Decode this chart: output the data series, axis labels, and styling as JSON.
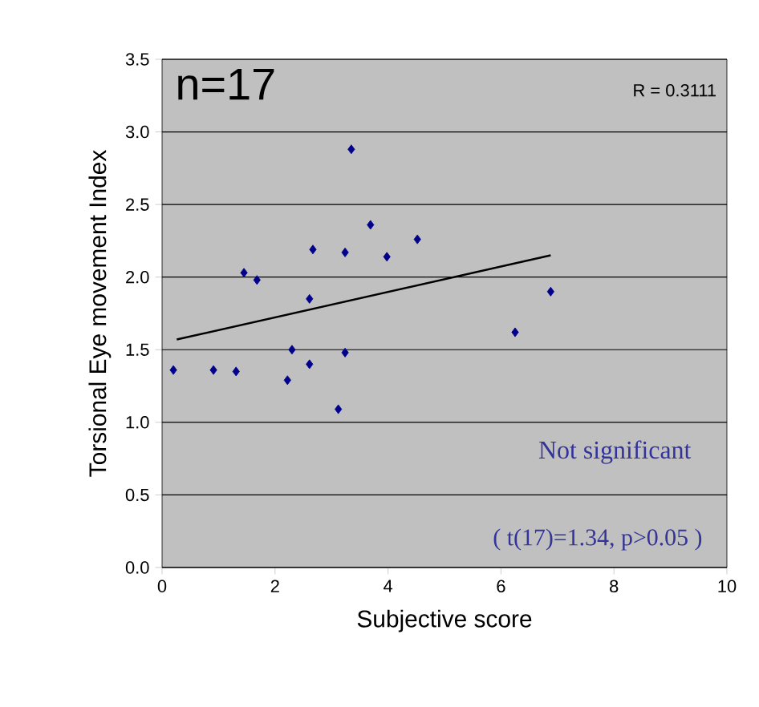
{
  "chart_data": {
    "type": "scatter",
    "xlabel": "Subjective score",
    "ylabel": "Torsional Eye movement Index",
    "xlim": [
      0,
      10
    ],
    "ylim": [
      0,
      3.5
    ],
    "xticks": [
      0,
      2,
      4,
      6,
      8,
      10
    ],
    "yticks": [
      {
        "value": 0,
        "label": "0.0"
      },
      0.5,
      {
        "value": 1,
        "label": "1.0"
      },
      1.5,
      {
        "value": 2,
        "label": "2.0"
      },
      2.5,
      {
        "value": 3,
        "label": "3.0"
      },
      3.5
    ],
    "grid": "y",
    "marker": "diamond",
    "series": [
      {
        "color": "#00008b",
        "x": [
          0.2,
          0.91,
          1.31,
          1.45,
          1.68,
          2.22,
          2.3,
          2.61,
          2.61,
          2.67,
          3.12,
          3.24,
          3.24,
          3.35,
          3.69,
          3.98,
          4.52,
          6.25,
          6.88
        ],
        "values": [
          1.36,
          1.36,
          1.35,
          2.03,
          1.98,
          1.29,
          1.5,
          1.4,
          1.85,
          2.19,
          1.09,
          2.17,
          1.48,
          2.88,
          2.36,
          2.14,
          2.26,
          1.62,
          1.9
        ]
      },
      {
        "type": "line",
        "color": "#000000",
        "marker": "none",
        "x": [
          0.26,
          6.88
        ],
        "values": [
          1.57,
          2.15
        ]
      }
    ],
    "annotations": [
      "n=17",
      "R = 0.3111",
      "Not significant",
      "( t(17)=1.34, p>0.05 )"
    ]
  }
}
